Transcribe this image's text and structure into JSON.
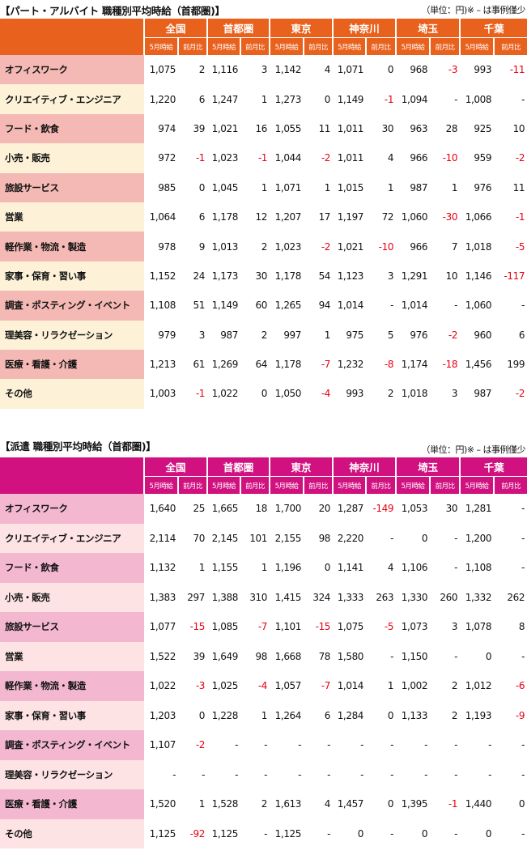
{
  "sections": [
    {
      "title": "【パート・アルバイト 職種別平均時給（首都圏)】",
      "unit_note": "（単位：円)※ – は事例僅少",
      "header_color": "#e8611d",
      "row_colors": [
        "#f4b9b4",
        "#fdf2d8"
      ],
      "regions": [
        "全国",
        "首都圏",
        "東京",
        "神奈川",
        "埼玉",
        "千葉"
      ],
      "subheaders": [
        "5月時給",
        "前月比"
      ],
      "rows": [
        {
          "category": "オフィスワーク",
          "values": [
            "1,075",
            "2",
            "1,116",
            "3",
            "1,142",
            "4",
            "1,071",
            "0",
            "968",
            "-3",
            "993",
            "-11"
          ]
        },
        {
          "category": "クリエイティブ・エンジニア",
          "values": [
            "1,220",
            "6",
            "1,247",
            "1",
            "1,273",
            "0",
            "1,149",
            "-1",
            "1,094",
            "-",
            "1,008",
            "-"
          ]
        },
        {
          "category": "フード・飲食",
          "values": [
            "974",
            "39",
            "1,021",
            "16",
            "1,055",
            "11",
            "1,011",
            "30",
            "963",
            "28",
            "925",
            "10"
          ]
        },
        {
          "category": "小売・販売",
          "values": [
            "972",
            "-1",
            "1,023",
            "-1",
            "1,044",
            "-2",
            "1,011",
            "4",
            "966",
            "-10",
            "959",
            "-2"
          ]
        },
        {
          "category": "旅設サービス",
          "values": [
            "985",
            "0",
            "1,045",
            "1",
            "1,071",
            "1",
            "1,015",
            "1",
            "987",
            "1",
            "976",
            "11"
          ]
        },
        {
          "category": "営業",
          "values": [
            "1,064",
            "6",
            "1,178",
            "12",
            "1,207",
            "17",
            "1,197",
            "72",
            "1,060",
            "-30",
            "1,066",
            "-1"
          ]
        },
        {
          "category": "軽作業・物流・製造",
          "values": [
            "978",
            "9",
            "1,013",
            "2",
            "1,023",
            "-2",
            "1,021",
            "-10",
            "966",
            "7",
            "1,018",
            "-5"
          ]
        },
        {
          "category": "家事・保育・習い事",
          "values": [
            "1,152",
            "24",
            "1,173",
            "30",
            "1,178",
            "54",
            "1,123",
            "3",
            "1,291",
            "10",
            "1,146",
            "-117"
          ]
        },
        {
          "category": "調査・ポスティング・イベント",
          "values": [
            "1,108",
            "51",
            "1,149",
            "60",
            "1,265",
            "94",
            "1,014",
            "-",
            "1,014",
            "-",
            "1,060",
            "-"
          ]
        },
        {
          "category": "理美容・リラクゼーション",
          "values": [
            "979",
            "3",
            "987",
            "2",
            "997",
            "1",
            "975",
            "5",
            "976",
            "-2",
            "960",
            "6"
          ]
        },
        {
          "category": "医療・看護・介護",
          "values": [
            "1,213",
            "61",
            "1,269",
            "64",
            "1,178",
            "-7",
            "1,232",
            "-8",
            "1,174",
            "-18",
            "1,456",
            "199"
          ]
        },
        {
          "category": "その他",
          "values": [
            "1,003",
            "-1",
            "1,022",
            "0",
            "1,050",
            "-4",
            "993",
            "2",
            "1,018",
            "3",
            "987",
            "-2"
          ]
        }
      ]
    },
    {
      "title": "【派遣 職種別平均時給（首都圏)】",
      "unit_note": "（単位：円)※ – は事例僅少",
      "header_color": "#d0117f",
      "row_colors": [
        "#f3b8cf",
        "#fde3e4"
      ],
      "regions": [
        "全国",
        "首都圏",
        "東京",
        "神奈川",
        "埼玉",
        "千葉"
      ],
      "subheaders": [
        "5月時給",
        "前月比"
      ],
      "rows": [
        {
          "category": "オフィスワーク",
          "values": [
            "1,640",
            "25",
            "1,665",
            "18",
            "1,700",
            "20",
            "1,287",
            "-149",
            "1,053",
            "30",
            "1,281",
            "-"
          ]
        },
        {
          "category": "クリエイティブ・エンジニア",
          "values": [
            "2,114",
            "70",
            "2,145",
            "101",
            "2,155",
            "98",
            "2,220",
            "-",
            "0",
            "-",
            "1,200",
            "-"
          ]
        },
        {
          "category": "フード・飲食",
          "values": [
            "1,132",
            "1",
            "1,155",
            "1",
            "1,196",
            "0",
            "1,141",
            "4",
            "1,106",
            "-",
            "1,108",
            "-"
          ]
        },
        {
          "category": "小売・販売",
          "values": [
            "1,383",
            "297",
            "1,388",
            "310",
            "1,415",
            "324",
            "1,333",
            "263",
            "1,330",
            "260",
            "1,332",
            "262"
          ]
        },
        {
          "category": "旅設サービス",
          "values": [
            "1,077",
            "-15",
            "1,085",
            "-7",
            "1,101",
            "-15",
            "1,075",
            "-5",
            "1,073",
            "3",
            "1,078",
            "8"
          ]
        },
        {
          "category": "営業",
          "values": [
            "1,522",
            "39",
            "1,649",
            "98",
            "1,668",
            "78",
            "1,580",
            "-",
            "1,150",
            "-",
            "0",
            "-"
          ]
        },
        {
          "category": "軽作業・物流・製造",
          "values": [
            "1,022",
            "-3",
            "1,025",
            "-4",
            "1,057",
            "-7",
            "1,014",
            "1",
            "1,002",
            "2",
            "1,012",
            "-6"
          ]
        },
        {
          "category": "家事・保育・習い事",
          "values": [
            "1,203",
            "0",
            "1,228",
            "1",
            "1,264",
            "6",
            "1,284",
            "0",
            "1,133",
            "2",
            "1,193",
            "-9"
          ]
        },
        {
          "category": "調査・ポスティング・イベント",
          "values": [
            "1,107",
            "-2",
            "-",
            "-",
            "-",
            "-",
            "-",
            "-",
            "-",
            "-",
            "-",
            "-"
          ]
        },
        {
          "category": "理美容・リラクゼーション",
          "values": [
            "-",
            "-",
            "-",
            "-",
            "-",
            "-",
            "-",
            "-",
            "-",
            "-",
            "-",
            "-"
          ]
        },
        {
          "category": "医療・看護・介護",
          "values": [
            "1,520",
            "1",
            "1,528",
            "2",
            "1,613",
            "4",
            "1,457",
            "0",
            "1,395",
            "-1",
            "1,440",
            "0"
          ]
        },
        {
          "category": "その他",
          "values": [
            "1,125",
            "-92",
            "1,125",
            "-",
            "1,125",
            "-",
            "0",
            "-",
            "0",
            "-",
            "0",
            "-"
          ]
        }
      ]
    }
  ]
}
